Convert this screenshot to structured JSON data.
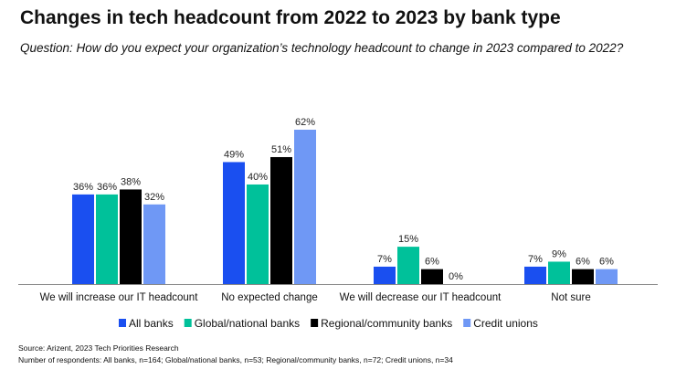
{
  "title": "Changes in tech headcount from 2022 to 2023 by bank type",
  "subtitle": "Question: How do you expect your organization’s technology headcount to change in 2023 compared to 2022?",
  "source": "Source: Arizent, 2023 Tech Priorities Research",
  "respondents": "Number of respondents: All banks, n=164; Global/national banks, n=53; Regional/community banks, n=72; Credit unions, n=34",
  "chart_data": {
    "type": "bar",
    "categories": [
      "We will increase our IT headcount",
      "No expected change",
      "We will decrease our IT headcount",
      "Not sure"
    ],
    "series": [
      {
        "name": "All banks",
        "color": "#1a4ff0",
        "values": [
          36,
          49,
          7,
          7
        ]
      },
      {
        "name": "Global/national banks",
        "color": "#00c19a",
        "values": [
          36,
          40,
          15,
          9
        ]
      },
      {
        "name": "Regional/community banks",
        "color": "#000000",
        "values": [
          38,
          51,
          6,
          6
        ]
      },
      {
        "name": "Credit unions",
        "color": "#6f98f5",
        "values": [
          32,
          62,
          0,
          6
        ]
      }
    ],
    "value_suffix": "%",
    "ylim": [
      0,
      62
    ],
    "grid": false,
    "legend": "bottom"
  }
}
